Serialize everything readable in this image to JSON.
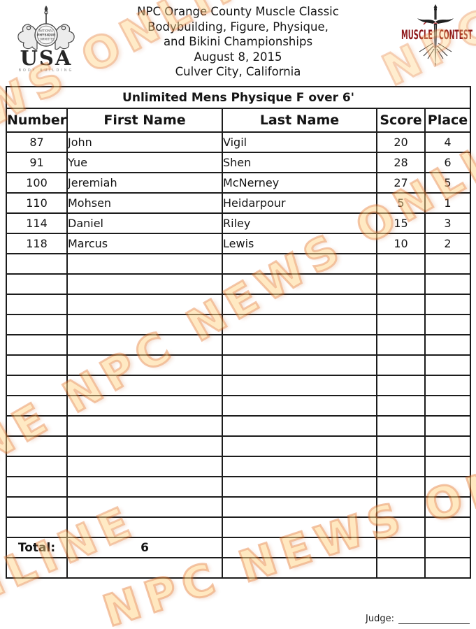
{
  "header": {
    "event_lines": [
      "NPC Orange County Muscle Classic",
      "Bodybuilding, Figure, Physique,",
      "and Bikini Championships",
      "August 8, 2015",
      "Culver City, California"
    ],
    "usa_logo": {
      "ring_top": "NATIONAL",
      "ring_mid": "PHYSIQUE",
      "ring_bottom": "COMMITTEE",
      "org": "USA",
      "subtitle": "BODY BUILDING"
    },
    "contest_logo": {
      "word_left": "MUSCLE",
      "word_right": "CONTEST"
    }
  },
  "table": {
    "title": "Unlimited Mens Physique F over 6'",
    "columns": [
      "Number",
      "First Name",
      "Last Name",
      "Score",
      "Place"
    ],
    "rows": [
      {
        "number": "87",
        "first": "John",
        "last": "Vigil",
        "score": "20",
        "place": "4"
      },
      {
        "number": "91",
        "first": "Yue",
        "last": "Shen",
        "score": "28",
        "place": "6"
      },
      {
        "number": "100",
        "first": "Jeremiah",
        "last": "McNerney",
        "score": "27",
        "place": "5"
      },
      {
        "number": "110",
        "first": "Mohsen",
        "last": "Heidarpour",
        "score": "5",
        "place": "1"
      },
      {
        "number": "114",
        "first": "Daniel",
        "last": "Riley",
        "score": "15",
        "place": "3"
      },
      {
        "number": "118",
        "first": "Marcus",
        "last": "Lewis",
        "score": "10",
        "place": "2"
      }
    ],
    "empty_row_count": 14,
    "total_label": "Total:",
    "total_value": "6",
    "trailing_empty_rows": 1
  },
  "footer": {
    "judge_label": "Judge:"
  },
  "watermark": {
    "text": "NPC NEWS ONLINE",
    "accent_color": "#f7941d",
    "chunks": [
      "EWS ONLINE",
      "NPC",
      "NE NPC NEWS ONLINE N",
      "NPC NEWS ONLINE",
      "NLINE"
    ]
  }
}
